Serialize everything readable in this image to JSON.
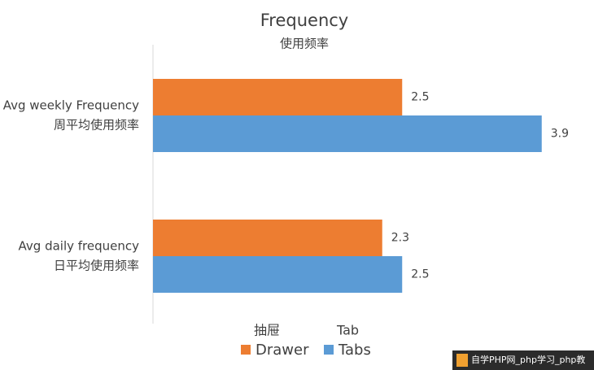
{
  "chart_data": {
    "type": "hbar",
    "title": "Frequency",
    "subtitle": "使用频率",
    "categories": [
      [
        "Avg weekly Frequency",
        "周平均使用频率"
      ],
      [
        "Avg daily frequency",
        "日平均使用频率"
      ]
    ],
    "series": [
      {
        "name": "Drawer",
        "legend_note": "抽屉",
        "color": "#ed7d31",
        "values": [
          2.5,
          2.3
        ]
      },
      {
        "name": "Tabs",
        "legend_note": "Tab",
        "color": "#5b9bd5",
        "values": [
          3.9,
          2.5
        ]
      }
    ],
    "xlim": [
      0,
      4
    ],
    "grid": false
  },
  "watermark": "自学PHP网_php学习_php教"
}
